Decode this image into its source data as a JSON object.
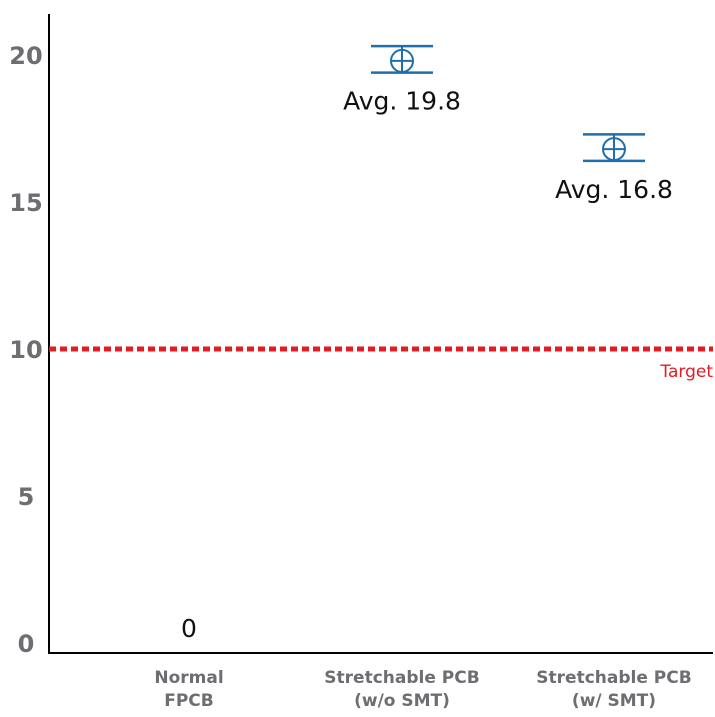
{
  "chart_data": {
    "type": "scatter",
    "categories": [
      [
        "Normal",
        "FPCB"
      ],
      [
        "Stretchable PCB",
        "(w/o SMT)"
      ],
      [
        "Stretchable PCB",
        "(w/ SMT)"
      ]
    ],
    "values": [
      0,
      19.8,
      16.8
    ],
    "error": [
      {
        "low": null,
        "high": null
      },
      {
        "low": 19.4,
        "high": 20.3
      },
      {
        "low": 16.4,
        "high": 17.3
      }
    ],
    "data_labels": [
      "0",
      "Avg. 19.8",
      "Avg. 16.8"
    ],
    "title": "",
    "xlabel": "",
    "ylabel": "",
    "ylim": [
      0,
      21
    ],
    "yticks": [
      0,
      5,
      10,
      15,
      20
    ],
    "grid": false,
    "target": {
      "value": 10,
      "label": "Target",
      "color": "#e31b23"
    },
    "marker_color": "#1f6fad",
    "tick_color": "#6d6e71"
  }
}
